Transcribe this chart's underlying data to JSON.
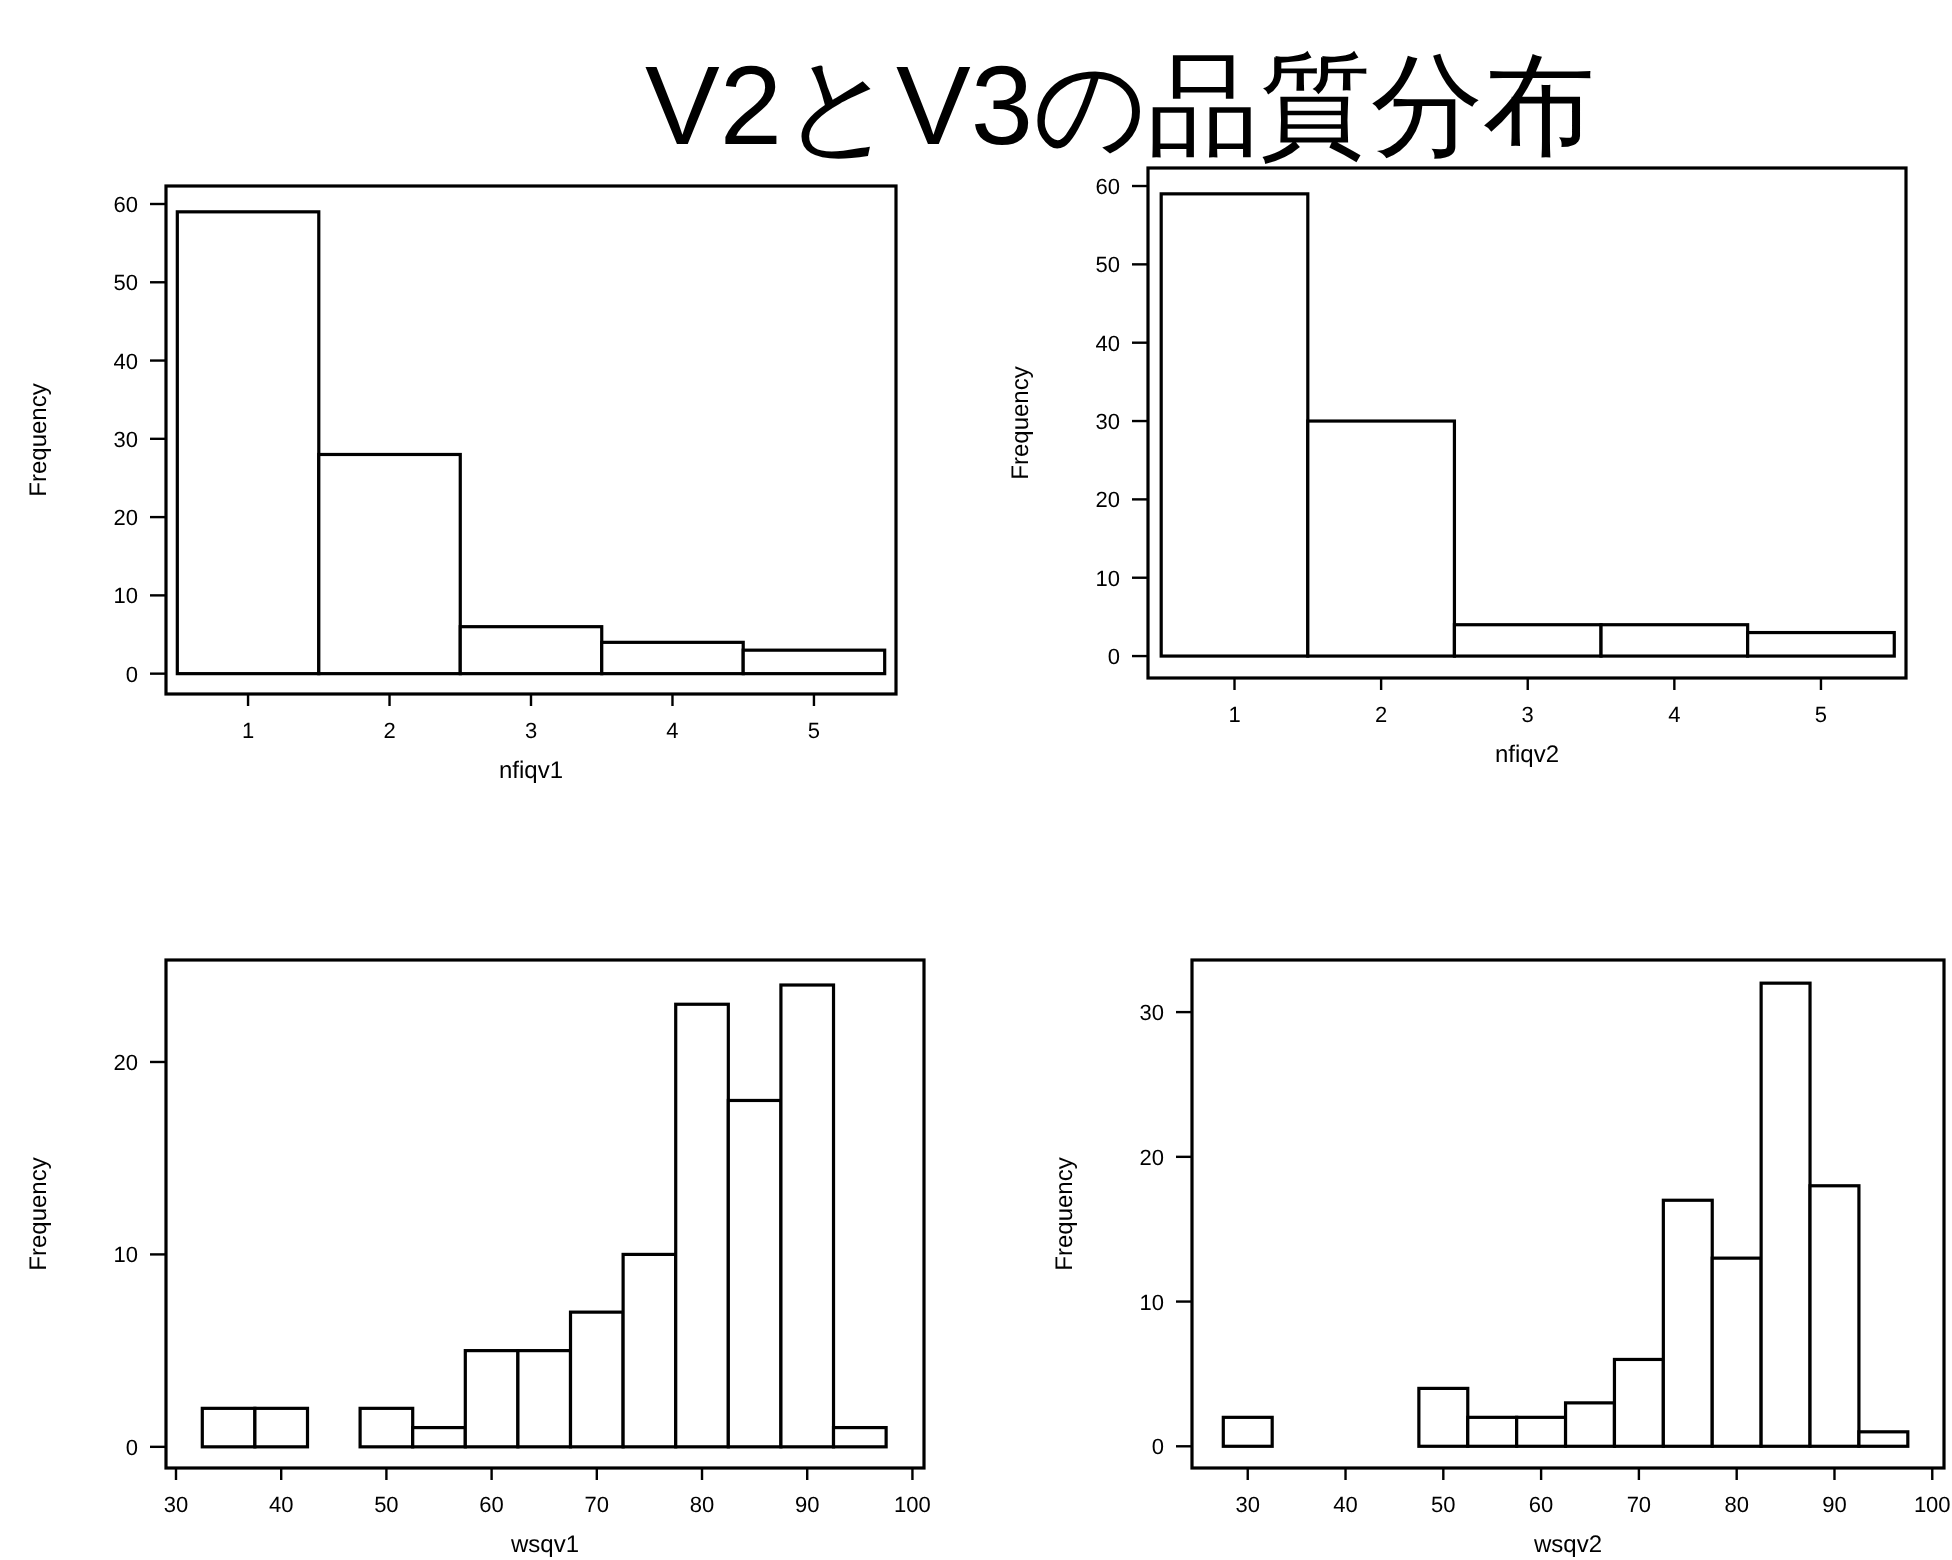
{
  "chart_data": [
    {
      "type": "histogram",
      "title": "V2とV3の品質分布",
      "xlabel": "nfiqv1",
      "ylabel": "Frequency",
      "color": "#ffffff",
      "bins": [
        0.5,
        1.5,
        2.5,
        3.5,
        4.5,
        5.5
      ],
      "values": [
        59,
        28,
        6,
        4,
        3
      ],
      "xlim": [
        0.42,
        5.58
      ],
      "ylim": [
        -2.6,
        62.3
      ],
      "xticks": [
        1,
        2,
        3,
        4,
        5
      ],
      "yticks": [
        0,
        10,
        20,
        30,
        40,
        50,
        60
      ]
    },
    {
      "type": "histogram",
      "xlabel": "nfiqv2",
      "ylabel": "Frequency",
      "color": "#ffffff",
      "bins": [
        0.5,
        1.5,
        2.5,
        3.5,
        4.5,
        5.5
      ],
      "values": [
        59,
        30,
        4,
        4,
        3
      ],
      "xlim": [
        0.41,
        5.58
      ],
      "ylim": [
        -2.8,
        62.3
      ],
      "xticks": [
        1,
        2,
        3,
        4,
        5
      ],
      "yticks": [
        0,
        10,
        20,
        30,
        40,
        50,
        60
      ]
    },
    {
      "type": "histogram",
      "xlabel": "wsqv1",
      "ylabel": "Frequency",
      "color": "#ffffff",
      "bins": [
        32.5,
        37.5,
        42.5,
        47.5,
        52.5,
        57.5,
        62.5,
        67.5,
        72.5,
        77.5,
        82.5,
        87.5,
        92.5,
        97.5
      ],
      "values": [
        2,
        2,
        0,
        2,
        1,
        5,
        5,
        7,
        10,
        23,
        18,
        24,
        1
      ],
      "xlim": [
        29.05,
        101.1
      ],
      "ylim": [
        -1.1,
        25.3
      ],
      "xticks": [
        30,
        40,
        50,
        60,
        70,
        80,
        90,
        100
      ],
      "yticks": [
        0,
        10,
        20
      ]
    },
    {
      "type": "histogram",
      "xlabel": "wsqv2",
      "ylabel": "Frequency",
      "color": "#ffffff",
      "bins": [
        27.5,
        32.5,
        37.5,
        42.5,
        47.5,
        52.5,
        57.5,
        62.5,
        67.5,
        72.5,
        77.5,
        82.5,
        87.5,
        92.5,
        97.5
      ],
      "values": [
        2,
        0,
        0,
        0,
        4,
        2,
        2,
        3,
        6,
        17,
        13,
        32,
        18,
        1
      ],
      "xlim": [
        24.3,
        101.2
      ],
      "ylim": [
        -1.5,
        33.6
      ],
      "xticks": [
        30,
        40,
        50,
        60,
        70,
        80,
        90,
        100
      ],
      "yticks": [
        0,
        10,
        20,
        30
      ]
    }
  ]
}
